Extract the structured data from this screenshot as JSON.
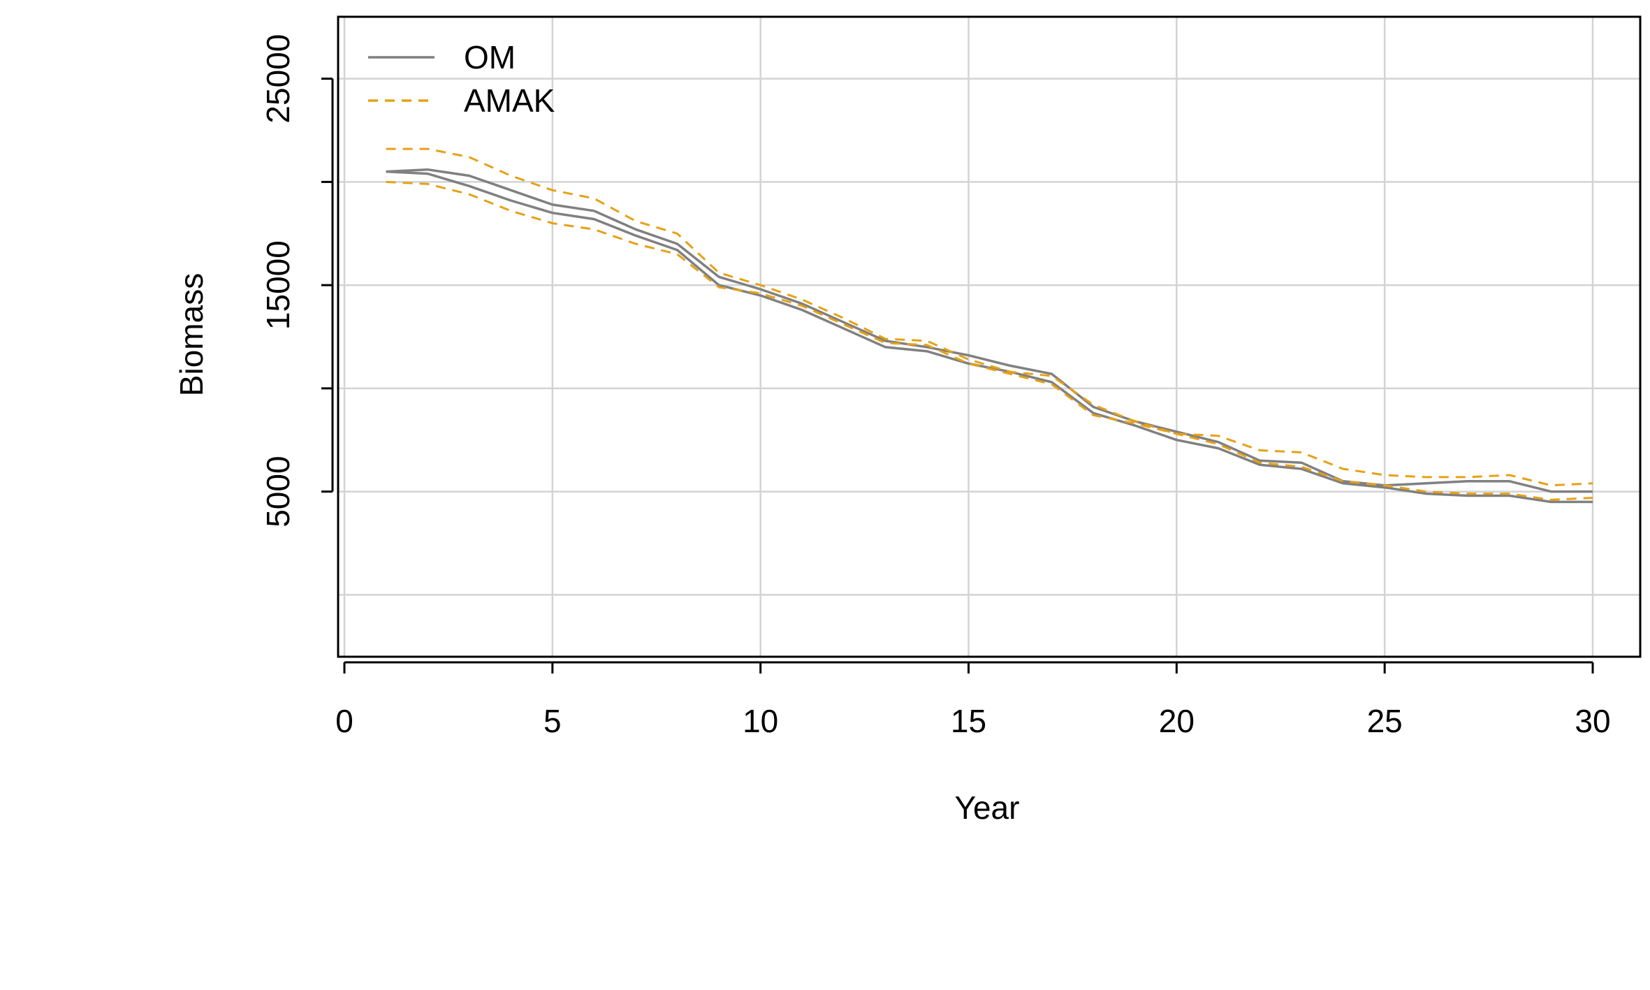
{
  "chart_data": {
    "type": "line",
    "title": "",
    "xlabel": "Year",
    "ylabel": "Biomass",
    "xlim": [
      0,
      30
    ],
    "ylim": [
      -3000,
      28000
    ],
    "x_ticks": [
      0,
      5,
      10,
      15,
      20,
      25,
      30
    ],
    "y_ticks": [
      5000,
      15000,
      25000
    ],
    "grid": true,
    "legend": {
      "position": "top-left",
      "entries": [
        "OM",
        "AMAK"
      ]
    },
    "colors": {
      "OM": "#808080",
      "AMAK": "#E6A117",
      "grid": "#d3d3d3"
    },
    "x": [
      1,
      2,
      3,
      4,
      5,
      6,
      7,
      8,
      9,
      10,
      11,
      12,
      13,
      14,
      15,
      16,
      17,
      18,
      19,
      20,
      21,
      22,
      23,
      24,
      25,
      26,
      27,
      28,
      29,
      30
    ],
    "series": [
      {
        "name": "OM",
        "role": "upper",
        "style": "solid",
        "values": [
          20500,
          20600,
          20300,
          19600,
          18900,
          18600,
          17700,
          17000,
          15400,
          14800,
          14100,
          13200,
          12300,
          12000,
          11600,
          11100,
          10700,
          9100,
          8400,
          7900,
          7400,
          6500,
          6400,
          5500,
          5300,
          5400,
          5500,
          5500,
          5000,
          5000
        ]
      },
      {
        "name": "OM",
        "role": "lower",
        "style": "solid",
        "values": [
          20500,
          20400,
          19800,
          19100,
          18500,
          18200,
          17400,
          16700,
          15000,
          14500,
          13800,
          12900,
          12000,
          11800,
          11200,
          10800,
          10300,
          8800,
          8200,
          7500,
          7100,
          6300,
          6100,
          5400,
          5200,
          4900,
          4800,
          4800,
          4500,
          4500
        ]
      },
      {
        "name": "AMAK",
        "role": "upper",
        "style": "dashed",
        "values": [
          21600,
          21600,
          21200,
          20300,
          19600,
          19200,
          18100,
          17500,
          15600,
          15000,
          14300,
          13400,
          12400,
          12300,
          11400,
          10800,
          10600,
          9200,
          8400,
          7800,
          7700,
          7000,
          6900,
          6100,
          5800,
          5700,
          5700,
          5800,
          5300,
          5400
        ]
      },
      {
        "name": "AMAK",
        "role": "lower",
        "style": "dashed",
        "values": [
          20000,
          19900,
          19400,
          18600,
          18000,
          17700,
          17000,
          16500,
          14900,
          14600,
          14000,
          13100,
          12200,
          12100,
          11200,
          10700,
          10200,
          8700,
          8300,
          7800,
          7300,
          6400,
          6200,
          5500,
          5300,
          5000,
          4900,
          4900,
          4600,
          4700
        ]
      }
    ]
  }
}
